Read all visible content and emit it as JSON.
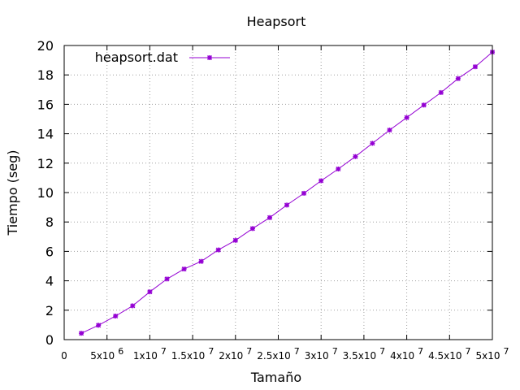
{
  "chart_data": {
    "type": "line",
    "title": "Heapsort",
    "xlabel": "Tamaño",
    "ylabel": "Tiempo (seg)",
    "xlim": [
      0,
      50000000
    ],
    "ylim": [
      0,
      20
    ],
    "grid": true,
    "legend_position": "top-left",
    "x_ticks": [
      {
        "value": 0,
        "base": "0",
        "exp": ""
      },
      {
        "value": 5000000,
        "base": "5x10",
        "exp": "6"
      },
      {
        "value": 10000000,
        "base": "1x10",
        "exp": "7"
      },
      {
        "value": 15000000,
        "base": "1.5x10",
        "exp": "7"
      },
      {
        "value": 20000000,
        "base": "2x10",
        "exp": "7"
      },
      {
        "value": 25000000,
        "base": "2.5x10",
        "exp": "7"
      },
      {
        "value": 30000000,
        "base": "3x10",
        "exp": "7"
      },
      {
        "value": 35000000,
        "base": "3.5x10",
        "exp": "7"
      },
      {
        "value": 40000000,
        "base": "4x10",
        "exp": "7"
      },
      {
        "value": 45000000,
        "base": "4.5x10",
        "exp": "7"
      },
      {
        "value": 50000000,
        "base": "5x10",
        "exp": "7"
      }
    ],
    "y_ticks": [
      0,
      2,
      4,
      6,
      8,
      10,
      12,
      14,
      16,
      18,
      20
    ],
    "series": [
      {
        "name": "heapsort.dat",
        "color": "#9400d3",
        "x": [
          2000000,
          4000000,
          6000000,
          8000000,
          10000000,
          12000000,
          14000000,
          16000000,
          18000000,
          20000000,
          22000000,
          24000000,
          26000000,
          28000000,
          30000000,
          32000000,
          34000000,
          36000000,
          38000000,
          40000000,
          42000000,
          44000000,
          46000000,
          48000000,
          50000000
        ],
        "y": [
          0.43,
          0.98,
          1.6,
          2.3,
          3.25,
          4.12,
          4.8,
          5.32,
          6.1,
          6.75,
          7.55,
          8.3,
          9.15,
          9.95,
          10.8,
          11.6,
          12.45,
          13.35,
          14.25,
          15.1,
          15.95,
          16.8,
          17.75,
          18.55,
          19.55
        ]
      }
    ]
  }
}
